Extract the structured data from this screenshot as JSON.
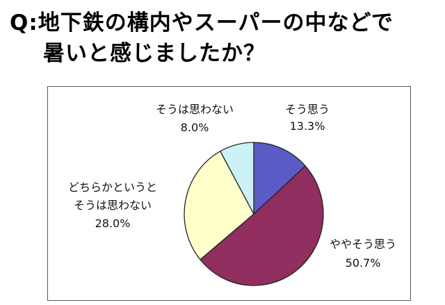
{
  "title": {
    "line1": "Q:地下鉄の構内やスーパーの中などで",
    "line2": "暑いと感じましたか？"
  },
  "chart_data": {
    "type": "pie",
    "slices": [
      {
        "label": "そう思う",
        "value": 13.3,
        "value_label": "13.3%",
        "color": "#5b5bc6"
      },
      {
        "label": "ややそう思う",
        "value": 50.7,
        "value_label": "50.7%",
        "color": "#8f2e5f"
      },
      {
        "label_lines": [
          "どちらかというと",
          "そうは思わない"
        ],
        "value": 28.0,
        "value_label": "28.0%",
        "color": "#ffffcc"
      },
      {
        "label": "そうは思わない",
        "value": 8.0,
        "value_label": "8.0%",
        "color": "#ccf2f7"
      }
    ]
  }
}
